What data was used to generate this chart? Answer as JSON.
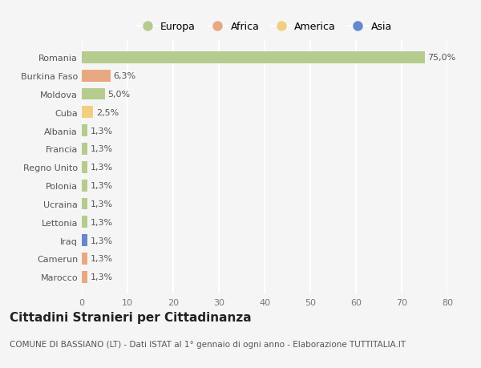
{
  "countries": [
    "Romania",
    "Burkina Faso",
    "Moldova",
    "Cuba",
    "Albania",
    "Francia",
    "Regno Unito",
    "Polonia",
    "Ucraina",
    "Lettonia",
    "Iraq",
    "Camerun",
    "Marocco"
  ],
  "values": [
    75.0,
    6.3,
    5.0,
    2.5,
    1.3,
    1.3,
    1.3,
    1.3,
    1.3,
    1.3,
    1.3,
    1.3,
    1.3
  ],
  "labels": [
    "75,0%",
    "6,3%",
    "5,0%",
    "2,5%",
    "1,3%",
    "1,3%",
    "1,3%",
    "1,3%",
    "1,3%",
    "1,3%",
    "1,3%",
    "1,3%",
    "1,3%"
  ],
  "continents": [
    "Europa",
    "Africa",
    "Europa",
    "America",
    "Europa",
    "Europa",
    "Europa",
    "Europa",
    "Europa",
    "Europa",
    "Asia",
    "Africa",
    "Africa"
  ],
  "continent_colors": {
    "Europa": "#b5cc8e",
    "Africa": "#e8a882",
    "America": "#f0d080",
    "Asia": "#6688cc"
  },
  "legend_order": [
    "Europa",
    "Africa",
    "America",
    "Asia"
  ],
  "title": "Cittadini Stranieri per Cittadinanza",
  "subtitle": "COMUNE DI BASSIANO (LT) - Dati ISTAT al 1° gennaio di ogni anno - Elaborazione TUTTITALIA.IT",
  "xlim": [
    0,
    80
  ],
  "xticks": [
    0,
    10,
    20,
    30,
    40,
    50,
    60,
    70,
    80
  ],
  "background_color": "#f5f5f5",
  "grid_color": "#ffffff",
  "bar_height": 0.65,
  "label_fontsize": 8,
  "tick_fontsize": 8,
  "title_fontsize": 11,
  "subtitle_fontsize": 7.5
}
